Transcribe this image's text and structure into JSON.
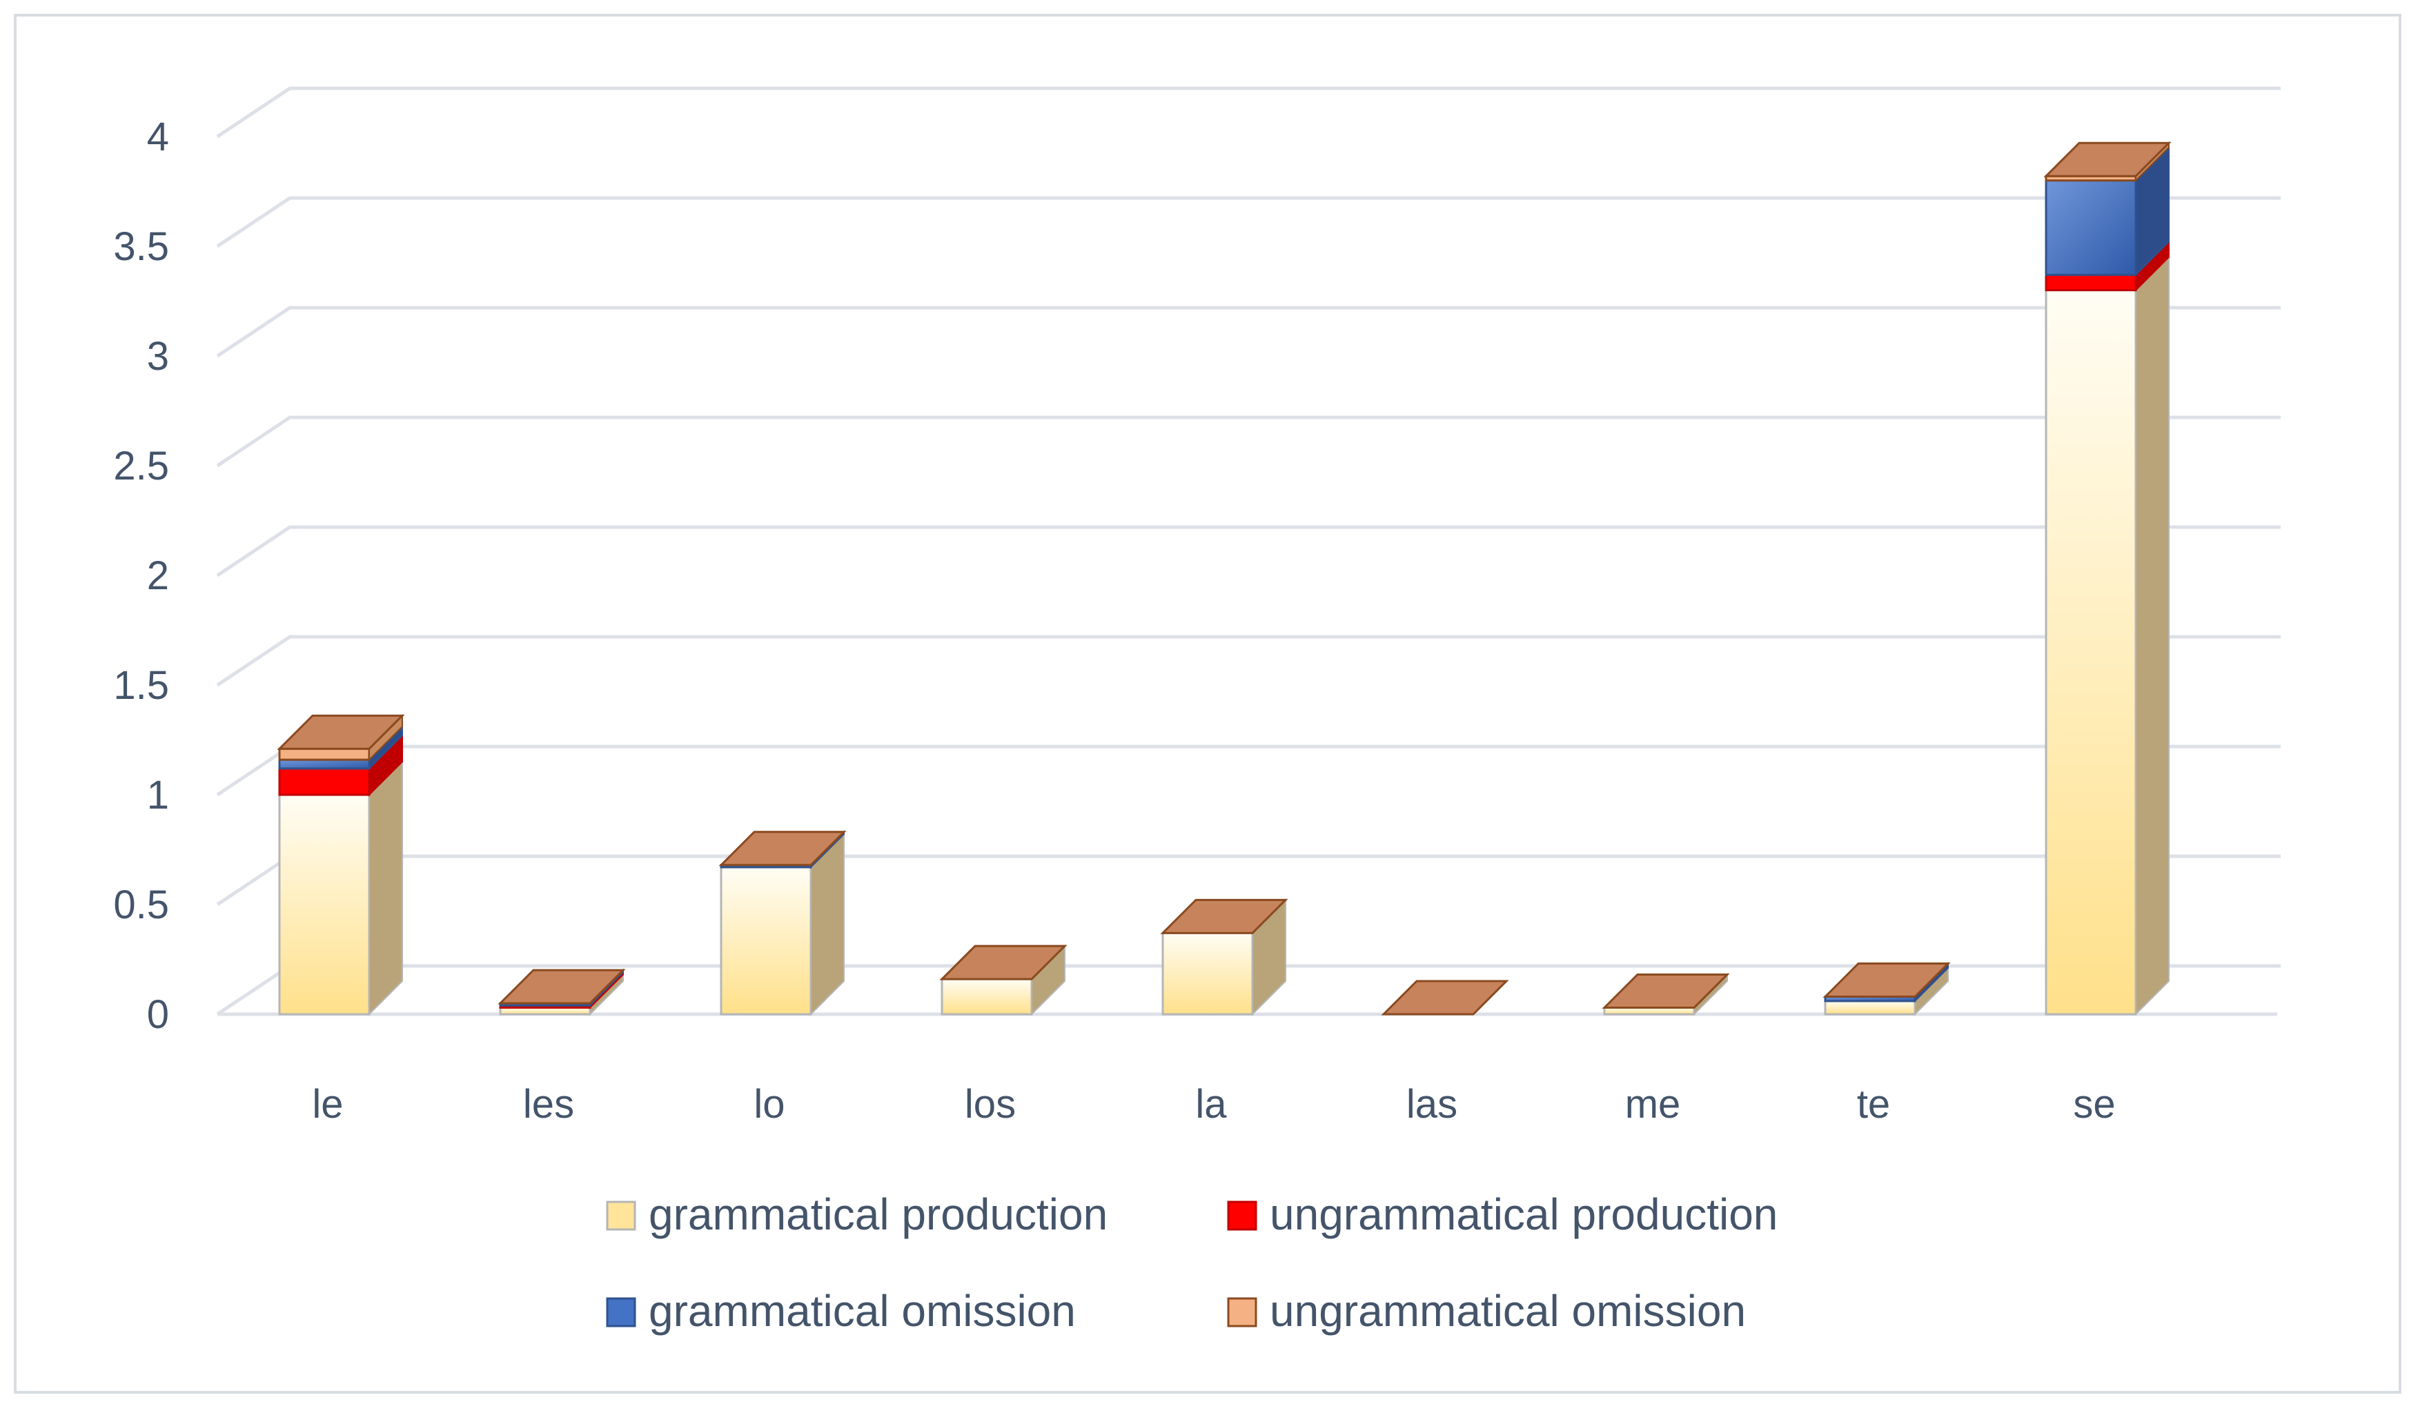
{
  "chart_data": {
    "type": "bar",
    "stacked": true,
    "three_d": true,
    "categories": [
      "le",
      "les",
      "lo",
      "los",
      "la",
      "las",
      "me",
      "te",
      "se"
    ],
    "series": [
      {
        "name": "grammatical production",
        "color": "#ffe49a",
        "values": [
          1.0,
          0.03,
          0.67,
          0.16,
          0.37,
          0.0,
          0.03,
          0.06,
          3.3
        ]
      },
      {
        "name": "ungrammatical production",
        "color": "#ff0000",
        "values": [
          0.12,
          0.01,
          0.0,
          0.0,
          0.0,
          0.0,
          0.0,
          0.0,
          0.07
        ]
      },
      {
        "name": "grammatical omission",
        "color": "#4472c4",
        "values": [
          0.04,
          0.01,
          0.01,
          0.0,
          0.0,
          0.0,
          0.0,
          0.02,
          0.43
        ]
      },
      {
        "name": "ungrammatical omission",
        "color": "#f4b183",
        "values": [
          0.05,
          0.0,
          0.0,
          0.0,
          0.0,
          0.0,
          0.0,
          0.0,
          0.02
        ]
      }
    ],
    "y_ticks": [
      "0",
      "0.5",
      "1",
      "1.5",
      "2",
      "2.5",
      "3",
      "3.5",
      "4"
    ],
    "ylim": [
      0,
      4
    ],
    "grid": true,
    "legend_position": "bottom",
    "title": "",
    "xlabel": "",
    "ylabel": ""
  }
}
